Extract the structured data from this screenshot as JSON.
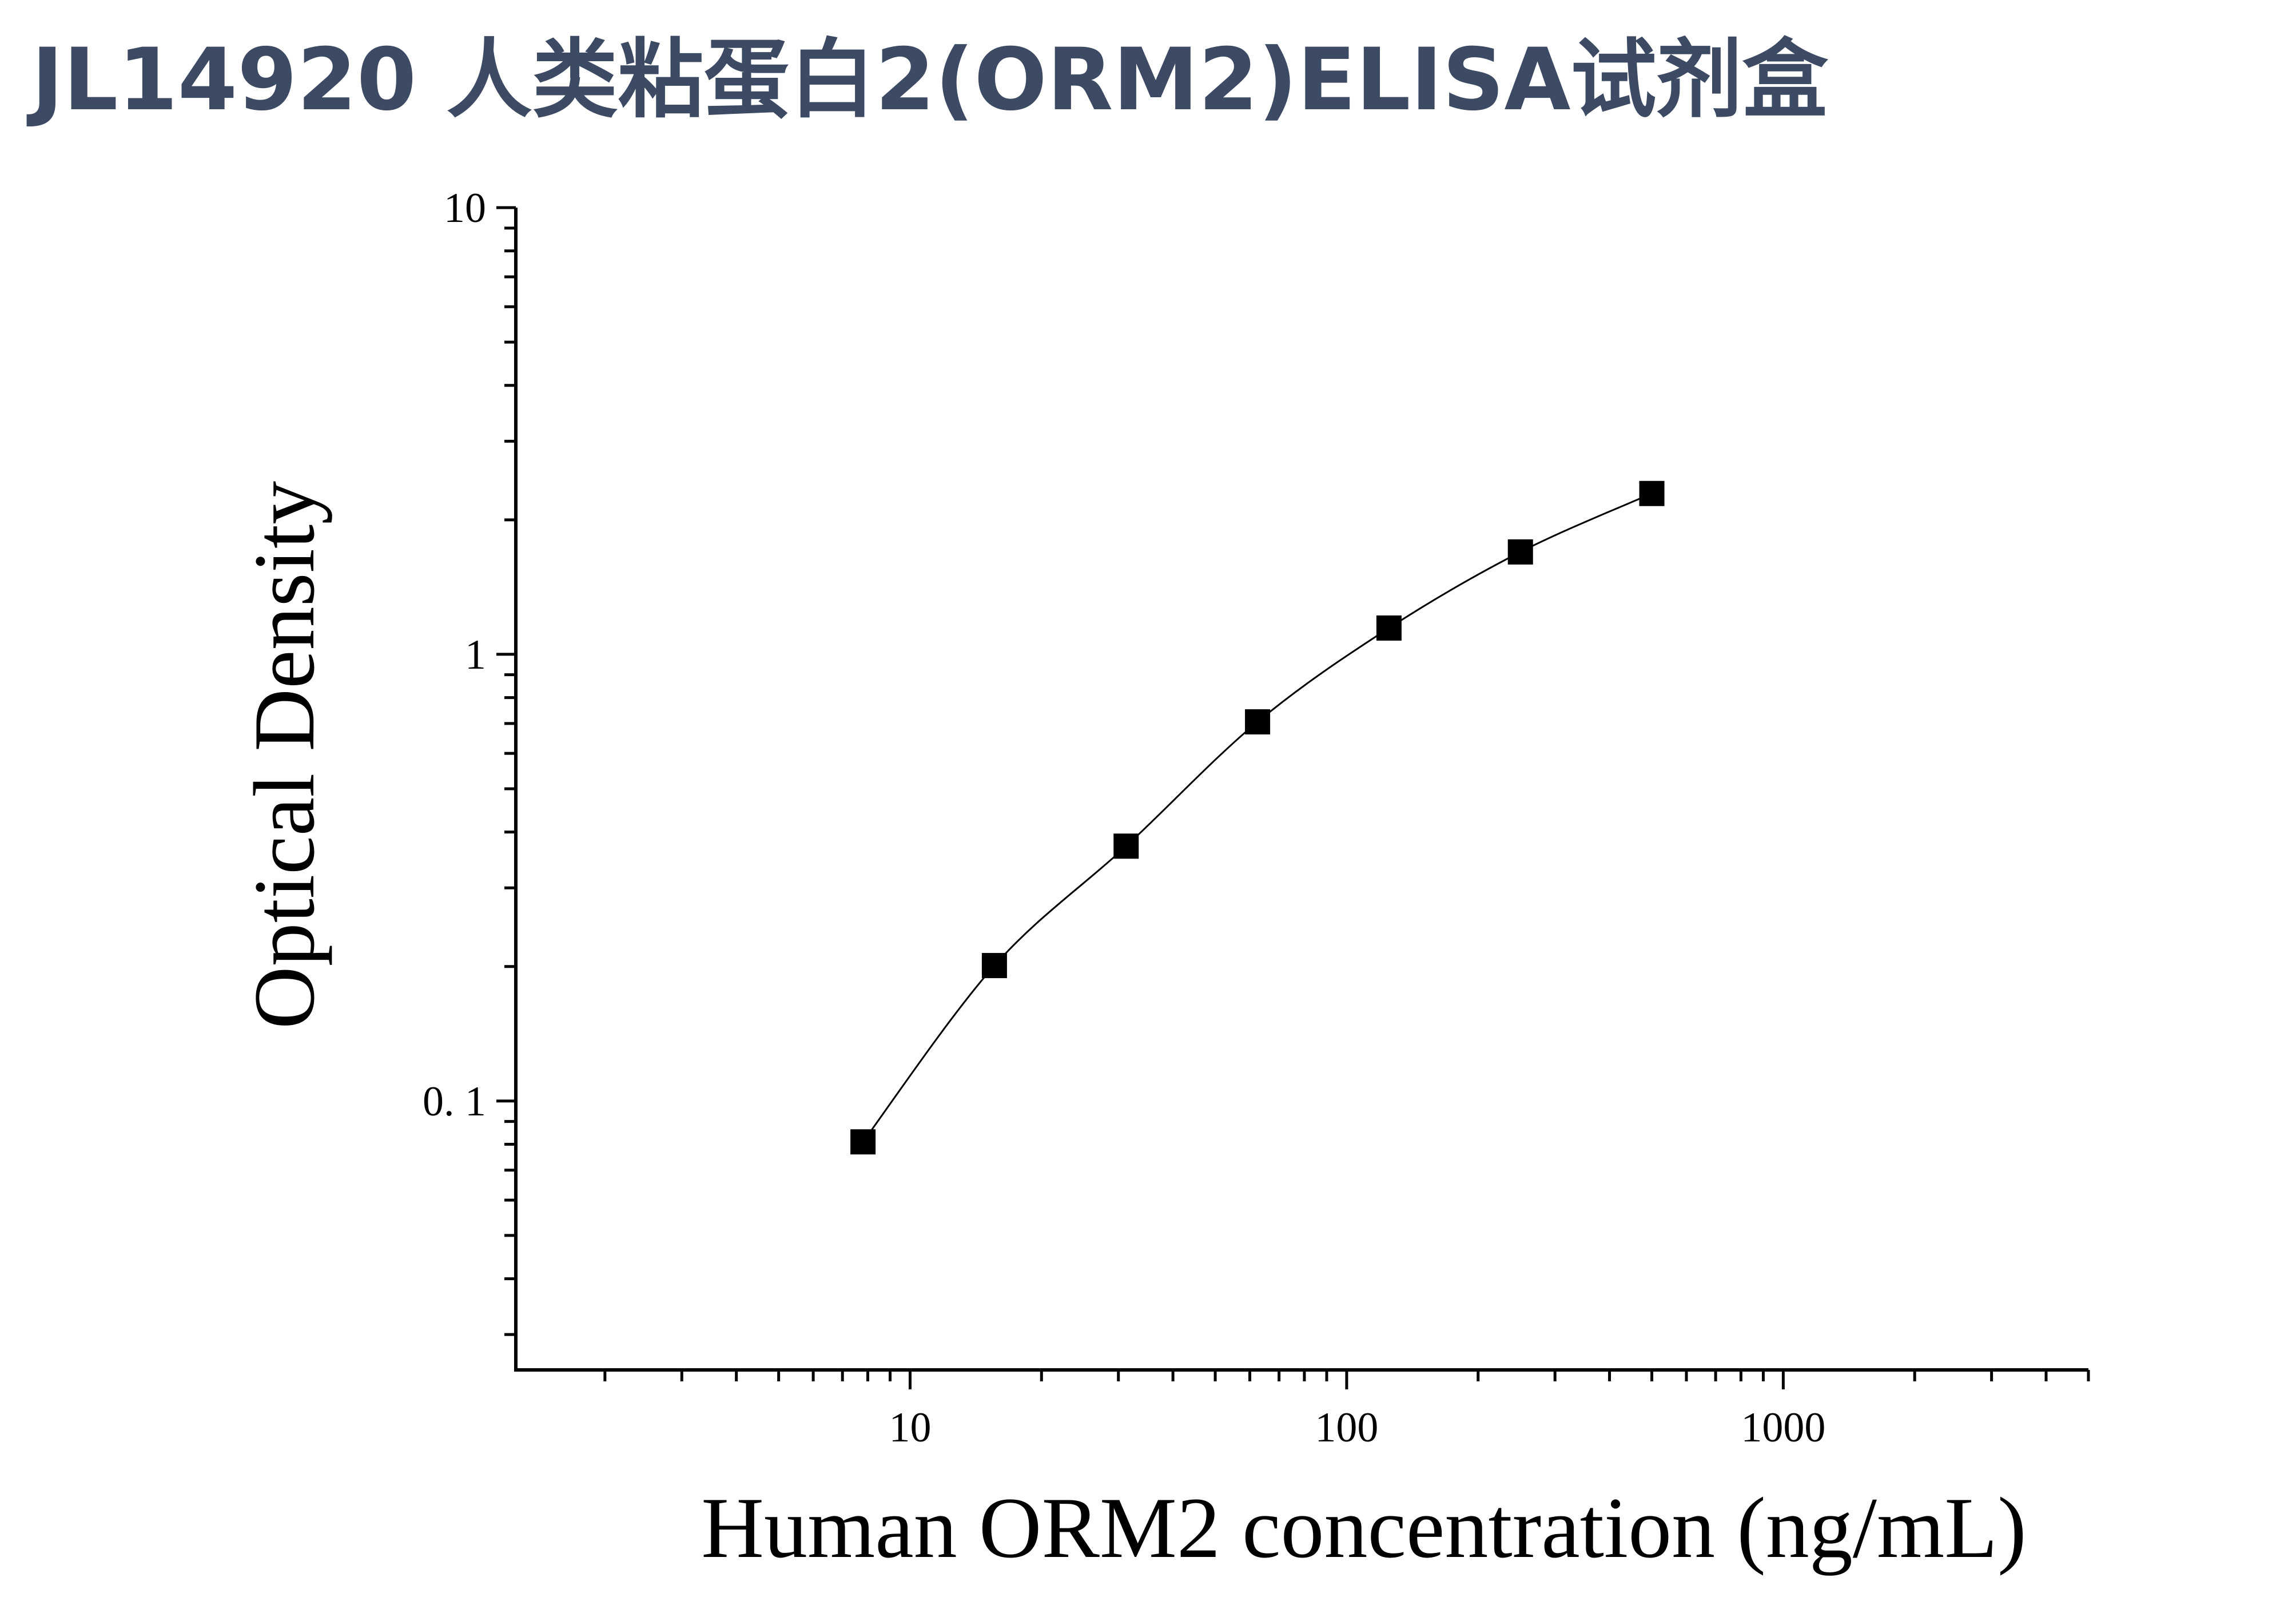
{
  "title": "JL14920 人类粘蛋白2(ORM2)ELISA试剂盒",
  "colors": {
    "title": "#3d4a64",
    "axis": "#000000",
    "marker": "#000000",
    "curve": "#000000"
  },
  "chart_data": {
    "type": "scatter",
    "title": "JL14920 人类粘蛋白2(ORM2)ELISA试剂盒",
    "xlabel": "Human ORM2 concentration (ng/mL)",
    "ylabel": "Optical Density",
    "x_scale": "log",
    "y_scale": "log",
    "xlim": [
      1.25,
      5000
    ],
    "ylim": [
      0.025,
      10
    ],
    "x_ticks": [
      {
        "value": 10,
        "label": "10"
      },
      {
        "value": 100,
        "label": "100"
      },
      {
        "value": 1000,
        "label": "1000"
      }
    ],
    "y_ticks": [
      {
        "value": 0.1,
        "label": "0. 1"
      },
      {
        "value": 1,
        "label": "1"
      },
      {
        "value": 10,
        "label": "10"
      }
    ],
    "grid": false,
    "legend": "none",
    "marker": "square",
    "fit_curve": true,
    "series": [
      {
        "x": [
          7.8,
          15.6,
          31.25,
          62.5,
          125,
          250,
          500
        ],
        "y": [
          0.081,
          0.201,
          0.372,
          0.706,
          1.145,
          1.695,
          2.291
        ]
      }
    ]
  }
}
